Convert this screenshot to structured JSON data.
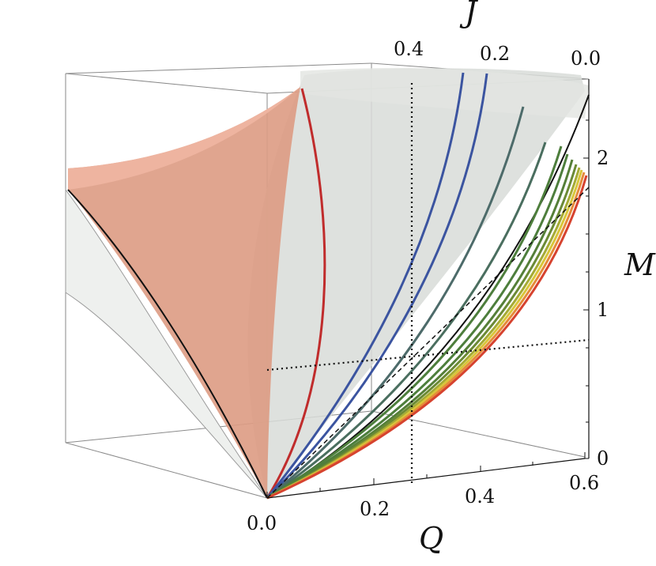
{
  "axes": {
    "J": {
      "name": "J",
      "ticks": [
        "0.4",
        "0.2",
        "0.0"
      ]
    },
    "M": {
      "name": "M",
      "ticks": [
        "2",
        "1",
        "0"
      ]
    },
    "Q": {
      "name": "Q",
      "ticks": [
        "0.0",
        "0.2",
        "0.4",
        "0.6"
      ]
    }
  },
  "colors": {
    "salmon_surface": "#e4a48f",
    "grey_surface": "#d6dad7",
    "red_curve": "#c02c2c",
    "blue_curve": "#3b54a0",
    "teal_curve": "#4d6b6a",
    "green_curve": "#4d7e3c",
    "yellow_curve": "#d8c63a",
    "orange_curve": "#e58b3a"
  }
}
